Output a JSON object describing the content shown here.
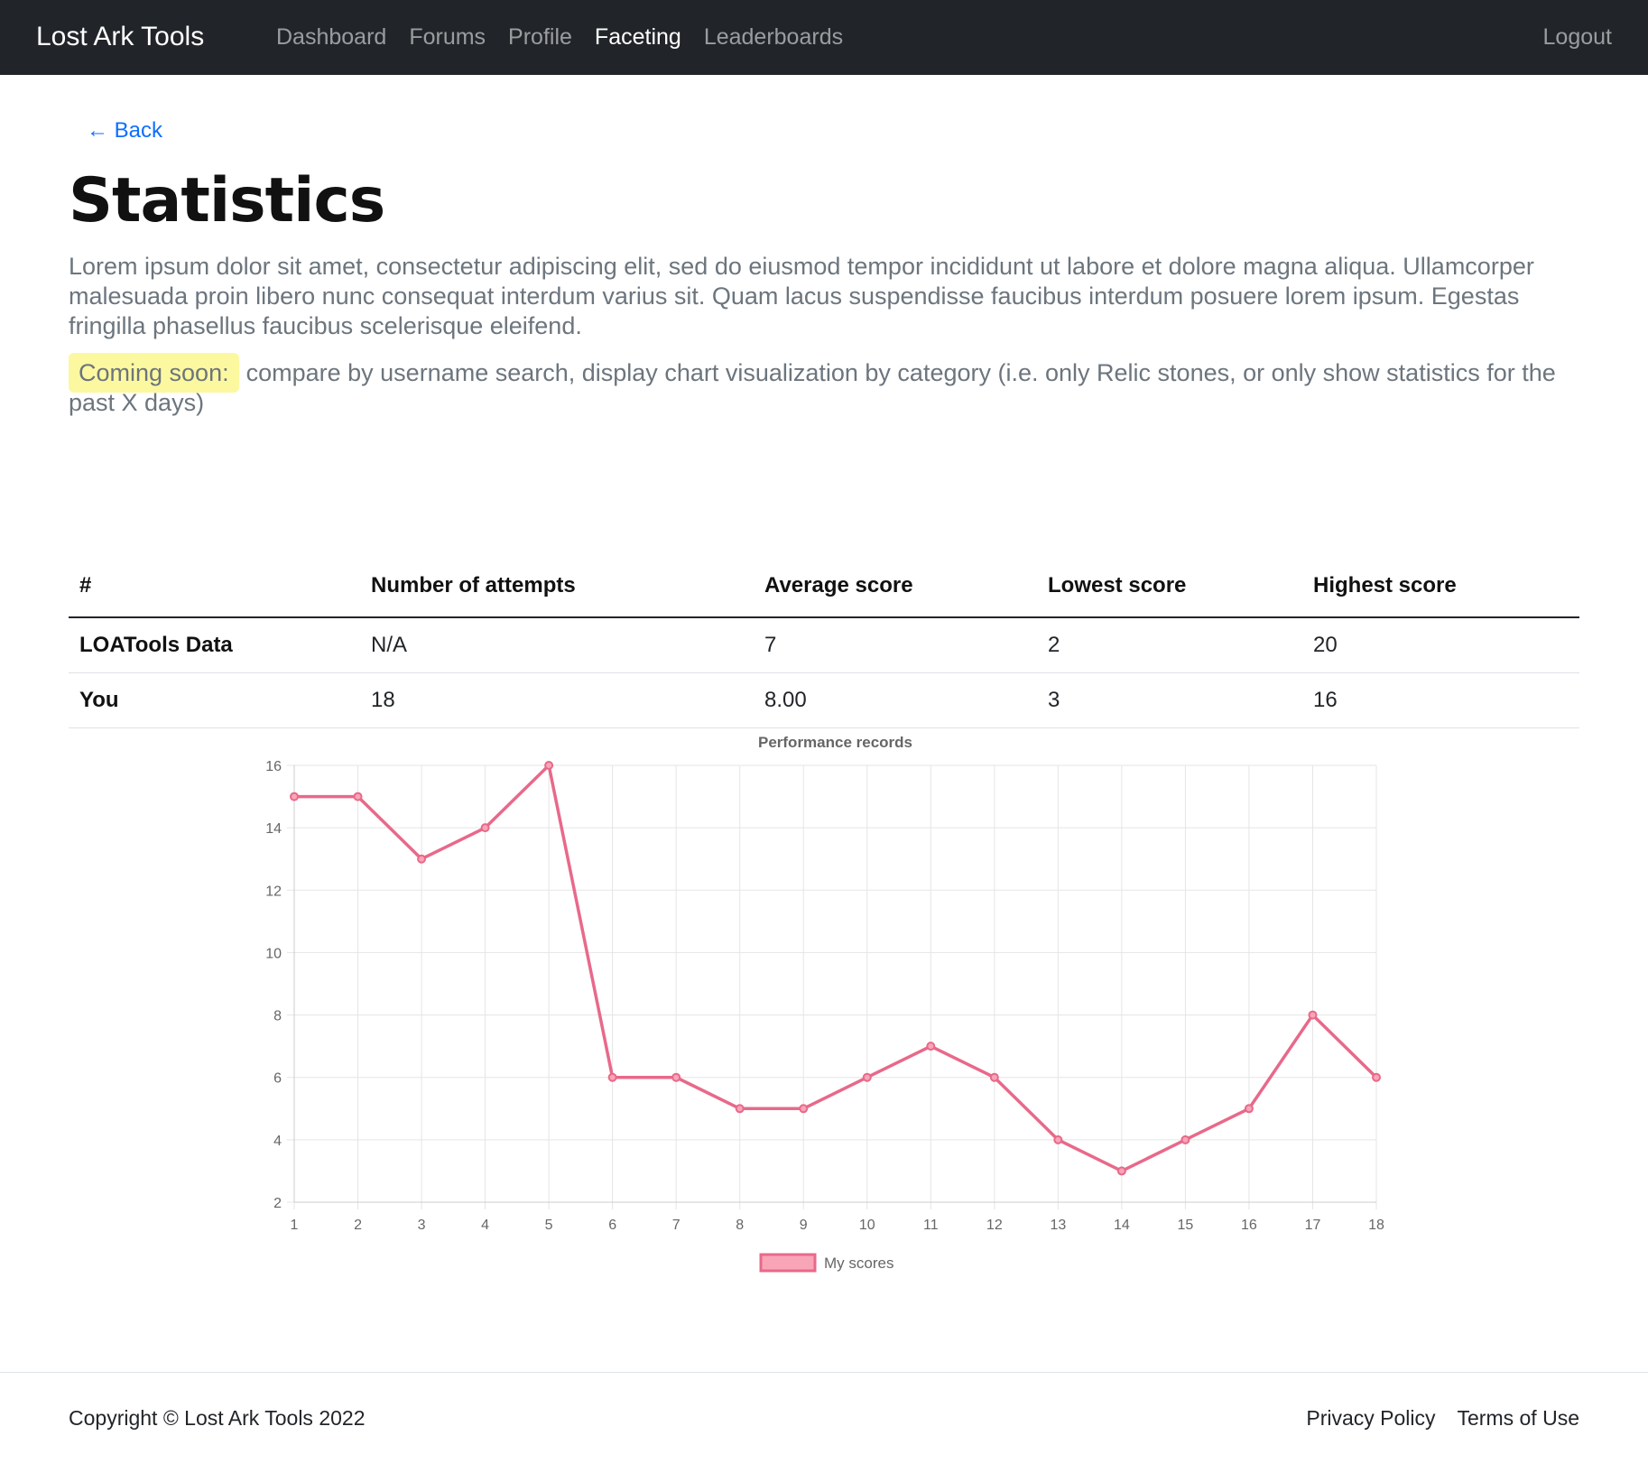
{
  "navbar": {
    "brand": "Lost Ark Tools",
    "links": [
      {
        "label": "Dashboard",
        "active": false
      },
      {
        "label": "Forums",
        "active": false
      },
      {
        "label": "Profile",
        "active": false
      },
      {
        "label": "Faceting",
        "active": true
      },
      {
        "label": "Leaderboards",
        "active": false
      }
    ],
    "logout": "Logout"
  },
  "page": {
    "back_label": "← Back",
    "title": "Statistics",
    "lead": "Lorem ipsum dolor sit amet, consectetur adipiscing elit, sed do eiusmod tempor incididunt ut labore et dolore magna aliqua. Ullamcorper malesuada proin libero nunc consequat interdum varius sit. Quam lacus suspendisse faucibus interdum posuere lorem ipsum. Egestas fringilla phasellus faucibus scelerisque eleifend.",
    "coming_soon_label": "Coming soon:",
    "coming_soon_text": "compare by username search, display chart visualization by category (i.e. only Relic stones, or only show statistics for the past X days)"
  },
  "table": {
    "headers": [
      "#",
      "Number of attempts",
      "Average score",
      "Lowest score",
      "Highest score"
    ],
    "rows": [
      {
        "label": "LOATools Data",
        "attempts": "N/A",
        "average": "7",
        "lowest": "2",
        "highest": "20"
      },
      {
        "label": "You",
        "attempts": "18",
        "average": "8.00",
        "lowest": "3",
        "highest": "16"
      }
    ]
  },
  "chart_data": {
    "type": "line",
    "title": "Performance records",
    "x": [
      1,
      2,
      3,
      4,
      5,
      6,
      7,
      8,
      9,
      10,
      11,
      12,
      13,
      14,
      15,
      16,
      17,
      18
    ],
    "series": [
      {
        "name": "My scores",
        "values": [
          15,
          15,
          13,
          14,
          16,
          6,
          6,
          5,
          5,
          6,
          7,
          6,
          4,
          3,
          4,
          5,
          8,
          6
        ]
      }
    ],
    "y_ticks": [
      2,
      4,
      6,
      8,
      10,
      12,
      14,
      16
    ],
    "ylim": [
      2,
      16
    ],
    "xlabel": "",
    "ylabel": "",
    "grid": true,
    "legend_position": "bottom",
    "line_color": "#e8698a",
    "fill_color": "#f8a5b7"
  },
  "footer": {
    "copyright": "Copyright © Lost Ark Tools 2022",
    "links": [
      "Privacy Policy",
      "Terms of Use"
    ]
  }
}
